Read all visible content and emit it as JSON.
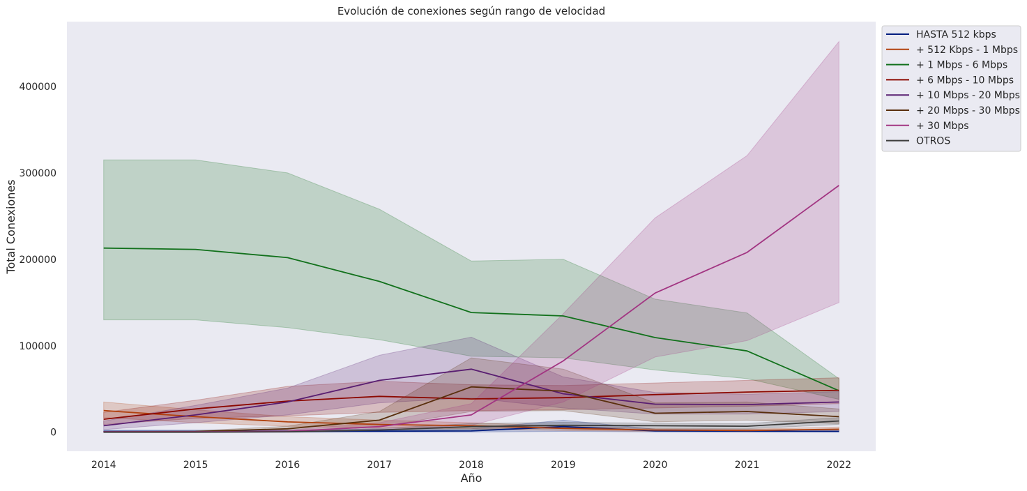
{
  "chart_data": {
    "type": "line",
    "title": "Evolución de conexiones según rango de velocidad",
    "xlabel": "Año",
    "ylabel": "Total Conexiones",
    "x": [
      2014,
      2015,
      2016,
      2017,
      2018,
      2019,
      2020,
      2021,
      2022
    ],
    "x_ticks": [
      "2014",
      "2015",
      "2016",
      "2017",
      "2018",
      "2019",
      "2020",
      "2021",
      "2022"
    ],
    "y_ticks": [
      "0",
      "100000",
      "200000",
      "300000",
      "400000"
    ],
    "xlim": [
      2013.6,
      2022.4
    ],
    "ylim": [
      -22000,
      475000
    ],
    "grid": false,
    "background": "#eaeaf2",
    "legend_position": "outside-top-right",
    "series": [
      {
        "name": "HASTA 512 kbps",
        "color": "#001c7f",
        "values": [
          1000,
          1000,
          1000,
          1200,
          1500,
          6500,
          1500,
          1200,
          1000
        ],
        "lower": [
          0,
          0,
          0,
          200,
          200,
          1000,
          300,
          200,
          200
        ],
        "upper": [
          2500,
          2500,
          2500,
          3500,
          4000,
          14000,
          3500,
          3000,
          2500
        ]
      },
      {
        "name": "+ 512 Kbps - 1 Mbps",
        "color": "#b1400d",
        "values": [
          25000,
          18000,
          12000,
          9000,
          7500,
          4500,
          2500,
          2000,
          3500
        ],
        "lower": [
          17000,
          11000,
          7000,
          5000,
          4000,
          2000,
          1000,
          700,
          1500
        ],
        "upper": [
          35000,
          26000,
          18000,
          14000,
          11000,
          7000,
          4000,
          3500,
          6000
        ]
      },
      {
        "name": "+ 1 Mbps - 6 Mbps",
        "color": "#12711c",
        "values": [
          213000,
          211500,
          202000,
          174500,
          138500,
          134500,
          109500,
          94000,
          48000
        ],
        "lower": [
          130000,
          130000,
          121000,
          107000,
          88000,
          86000,
          72000,
          62000,
          38000
        ],
        "upper": [
          315000,
          315000,
          300000,
          258000,
          198000,
          200000,
          154000,
          138000,
          62000
        ]
      },
      {
        "name": "+ 6 Mbps - 10 Mbps",
        "color": "#8c0800",
        "values": [
          15000,
          27000,
          36000,
          41500,
          38500,
          40000,
          43500,
          46500,
          48500
        ],
        "lower": [
          9000,
          16000,
          19000,
          23000,
          25000,
          26000,
          28000,
          30000,
          33000
        ],
        "upper": [
          23000,
          37000,
          53000,
          59000,
          55000,
          54000,
          57000,
          60000,
          63000
        ]
      },
      {
        "name": "+ 10 Mbps - 20 Mbps",
        "color": "#591e71",
        "values": [
          7500,
          20000,
          35000,
          60000,
          73000,
          44500,
          32500,
          32000,
          35000
        ],
        "lower": [
          3000,
          11000,
          20000,
          34000,
          40000,
          28000,
          21000,
          21000,
          24000
        ],
        "upper": [
          13000,
          31000,
          51000,
          89000,
          110000,
          64000,
          46000,
          44000,
          47000
        ]
      },
      {
        "name": "+ 20 Mbps - 30 Mbps",
        "color": "#592f0d",
        "values": [
          500,
          800,
          4000,
          14000,
          52500,
          47500,
          22000,
          24000,
          18000
        ],
        "lower": [
          0,
          200,
          1500,
          6000,
          24000,
          25000,
          12000,
          14000,
          10000
        ],
        "upper": [
          1000,
          1500,
          7000,
          24000,
          86000,
          73000,
          34000,
          35000,
          27000
        ]
      },
      {
        "name": "+ 30 Mbps",
        "color": "#a23582",
        "values": [
          500,
          500,
          1000,
          6500,
          20000,
          82500,
          161000,
          208000,
          285500
        ],
        "lower": [
          0,
          0,
          200,
          2500,
          8000,
          35000,
          87000,
          106000,
          150000
        ],
        "upper": [
          1000,
          1000,
          2500,
          11000,
          33000,
          137000,
          248000,
          320000,
          452000
        ]
      },
      {
        "name": "OTROS",
        "color": "#3c3c3c",
        "values": [
          0,
          0,
          500,
          2500,
          6500,
          8000,
          7500,
          7000,
          13000
        ],
        "lower": [
          0,
          0,
          0,
          1000,
          3000,
          5000,
          4500,
          4000,
          9000
        ],
        "upper": [
          500,
          500,
          1200,
          4500,
          10000,
          11500,
          10500,
          10000,
          17000
        ]
      }
    ]
  }
}
